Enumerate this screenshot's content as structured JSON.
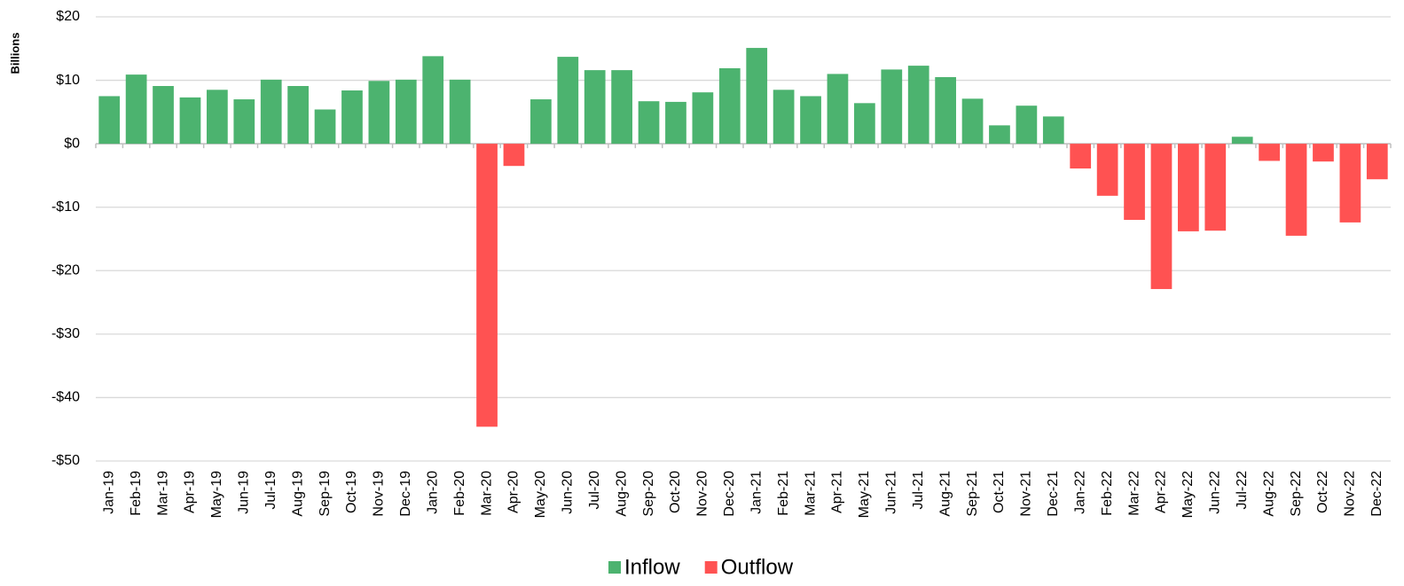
{
  "chart_data": {
    "type": "bar",
    "y_label": "Billions",
    "categories": [
      "Jan-19",
      "Feb-19",
      "Mar-19",
      "Apr-19",
      "May-19",
      "Jun-19",
      "Jul-19",
      "Aug-19",
      "Sep-19",
      "Oct-19",
      "Nov-19",
      "Dec-19",
      "Jan-20",
      "Feb-20",
      "Mar-20",
      "Apr-20",
      "May-20",
      "Jun-20",
      "Jul-20",
      "Aug-20",
      "Sep-20",
      "Oct-20",
      "Nov-20",
      "Dec-20",
      "Jan-21",
      "Feb-21",
      "Mar-21",
      "Apr-21",
      "May-21",
      "Jun-21",
      "Jul-21",
      "Aug-21",
      "Sep-21",
      "Oct-21",
      "Nov-21",
      "Dec-21",
      "Jan-22",
      "Feb-22",
      "Mar-22",
      "Apr-22",
      "May-22",
      "Jun-22",
      "Jul-22",
      "Aug-22",
      "Sep-22",
      "Oct-22",
      "Nov-22",
      "Dec-22"
    ],
    "series": [
      {
        "name": "Inflow",
        "color": "#4cb36f",
        "values": [
          7.5,
          10.9,
          9.1,
          7.3,
          8.5,
          7.0,
          10.1,
          9.1,
          5.4,
          8.4,
          9.9,
          10.1,
          13.8,
          10.1,
          null,
          null,
          7.0,
          13.7,
          11.6,
          11.6,
          6.7,
          6.6,
          8.1,
          11.9,
          15.1,
          8.5,
          7.5,
          11.0,
          6.4,
          11.7,
          12.3,
          10.5,
          7.1,
          2.9,
          6.0,
          4.3,
          null,
          null,
          null,
          null,
          null,
          null,
          1.1,
          null,
          null,
          null,
          null,
          null
        ]
      },
      {
        "name": "Outflow",
        "color": "#ff5252",
        "values": [
          null,
          null,
          null,
          null,
          null,
          null,
          null,
          null,
          null,
          null,
          null,
          null,
          null,
          null,
          -44.6,
          -3.5,
          null,
          null,
          null,
          null,
          null,
          null,
          null,
          null,
          null,
          null,
          null,
          null,
          null,
          null,
          null,
          null,
          null,
          null,
          null,
          null,
          -3.9,
          -8.2,
          -12.0,
          -22.9,
          -13.8,
          -13.7,
          null,
          -2.7,
          -14.5,
          -2.8,
          -12.4,
          -5.6
        ]
      }
    ],
    "ylim": [
      -50,
      20
    ],
    "yticks": [
      {
        "value": -50,
        "label": "-$50"
      },
      {
        "value": -40,
        "label": "-$40"
      },
      {
        "value": -30,
        "label": "-$30"
      },
      {
        "value": -20,
        "label": "-$20"
      },
      {
        "value": -10,
        "label": "-$10"
      },
      {
        "value": 0,
        "label": "$0"
      },
      {
        "value": 10,
        "label": "$10"
      },
      {
        "value": 20,
        "label": "$20"
      }
    ],
    "grid": true,
    "legend": "bottom"
  }
}
